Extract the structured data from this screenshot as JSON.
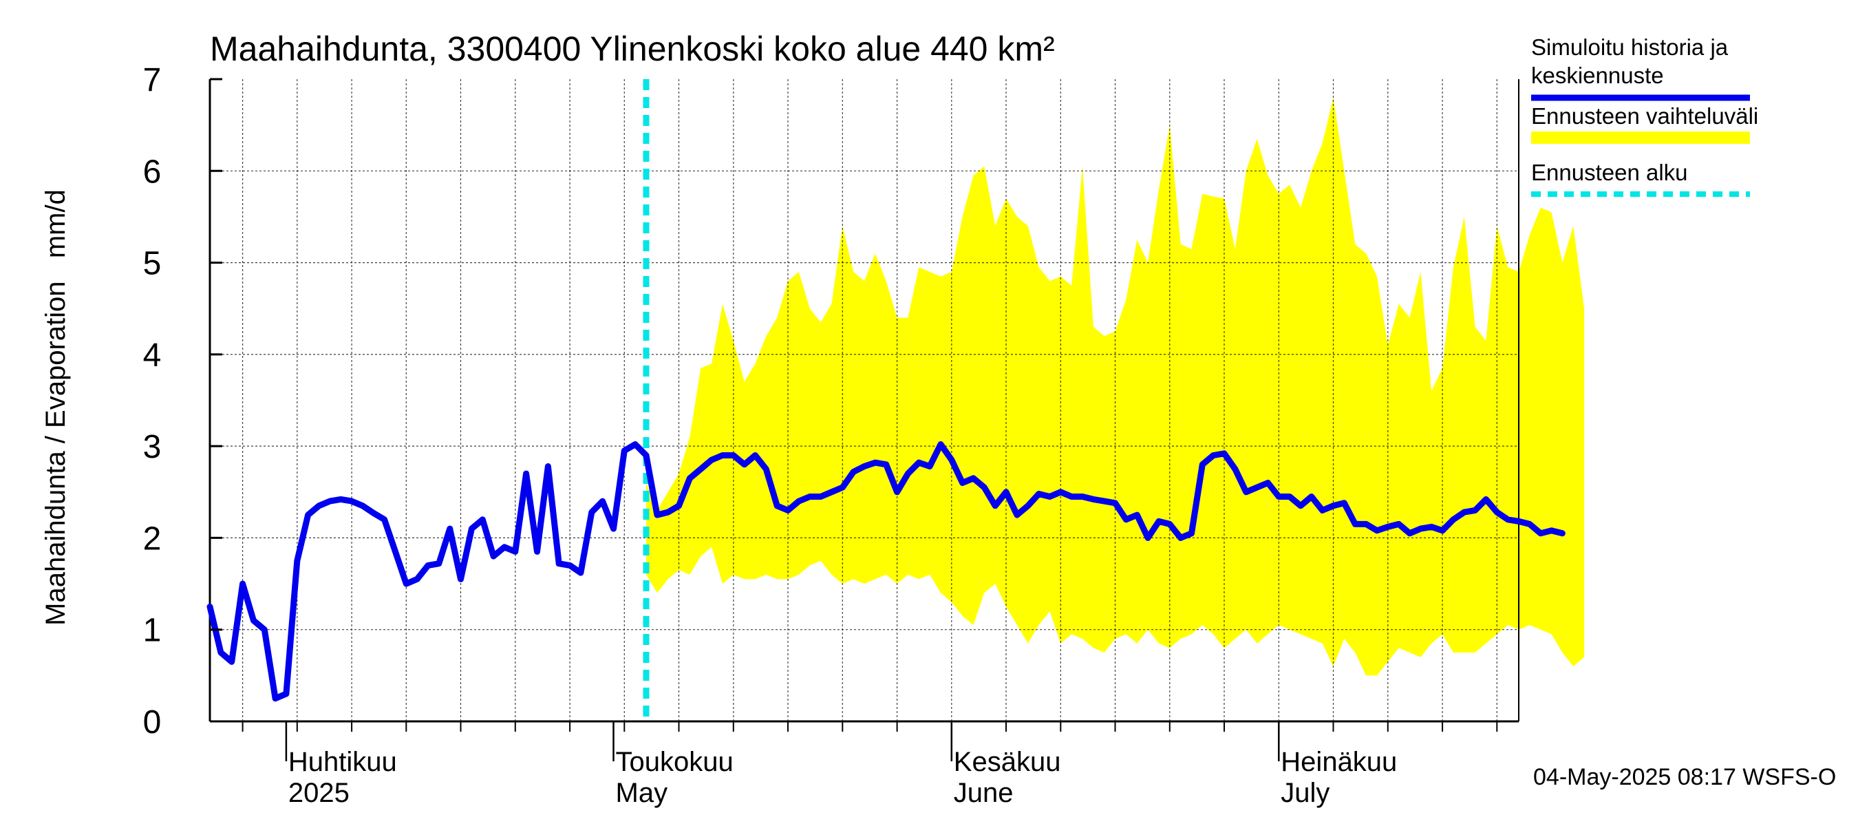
{
  "chart_data": {
    "type": "line",
    "title": "Maahaihdunta, 3300400 Ylinenkoski koko alue 440 km²",
    "ylabel": "Maahaihdunta / Evaporation   mm/d",
    "ylim": [
      0,
      7
    ],
    "yticks": [
      0,
      1,
      2,
      3,
      4,
      5,
      6,
      7
    ],
    "xlim": [
      "2025-03-25",
      "2025-07-23"
    ],
    "forecast_start": "2025-05-04",
    "months": [
      {
        "fi": "Huhtikuu",
        "en": "2025",
        "date": "2025-04-01"
      },
      {
        "fi": "Toukokuu",
        "en": "May",
        "date": "2025-05-01"
      },
      {
        "fi": "Kesäkuu",
        "en": "June",
        "date": "2025-06-01"
      },
      {
        "fi": "Heinäkuu",
        "en": "July",
        "date": "2025-07-01"
      }
    ],
    "legend": [
      {
        "label_line1": "Simuloitu historia ja",
        "label_line2": "keskiennuste",
        "color": "#0000ee",
        "style": "solid"
      },
      {
        "label_line1": "Ennusteen vaihteluväli",
        "label_line2": "",
        "color": "#ffff00",
        "style": "band"
      },
      {
        "label_line1": "Ennusteen alku",
        "label_line2": "",
        "color": "#00e5e5",
        "style": "dashed"
      }
    ],
    "colors": {
      "history": "#0000ee",
      "band": "#ffff00",
      "forecast_start": "#00e5e5",
      "grid": "#000000"
    },
    "series": [
      {
        "name": "Simuloitu historia ja keskiennuste",
        "start_date": "2025-03-25",
        "values": [
          1.25,
          0.75,
          0.65,
          1.5,
          1.1,
          1.0,
          0.25,
          0.3,
          1.75,
          2.25,
          2.35,
          2.4,
          2.42,
          2.4,
          2.35,
          2.27,
          2.2,
          1.85,
          1.5,
          1.55,
          1.7,
          1.72,
          2.1,
          1.55,
          2.1,
          2.2,
          1.8,
          1.9,
          1.85,
          2.7,
          1.85,
          2.78,
          1.72,
          1.7,
          1.62,
          2.28,
          2.4,
          2.1,
          2.95,
          3.02,
          2.9,
          2.25,
          2.28,
          2.35,
          2.65,
          2.75,
          2.85,
          2.9,
          2.9,
          2.8,
          2.9,
          2.75,
          2.35,
          2.3,
          2.4,
          2.45,
          2.45,
          2.5,
          2.55,
          2.72,
          2.78,
          2.82,
          2.8,
          2.5,
          2.7,
          2.82,
          2.78,
          3.02,
          2.85,
          2.6,
          2.65,
          2.55,
          2.35,
          2.5,
          2.25,
          2.35,
          2.48,
          2.45,
          2.5,
          2.45,
          2.45,
          2.42,
          2.4,
          2.38,
          2.2,
          2.25,
          2.0,
          2.18,
          2.15,
          2.0,
          2.05,
          2.8,
          2.9,
          2.92,
          2.75,
          2.5,
          2.55,
          2.6,
          2.45,
          2.45,
          2.35,
          2.45,
          2.3,
          2.35,
          2.38,
          2.15,
          2.15,
          2.08,
          2.12,
          2.15,
          2.05,
          2.1,
          2.12,
          2.08,
          2.2,
          2.28,
          2.3,
          2.42,
          2.28,
          2.2,
          2.18,
          2.15,
          2.05,
          2.08,
          2.05
        ]
      }
    ],
    "band": {
      "name": "Ennusteen vaihteluväli",
      "start_date": "2025-05-04",
      "upper": [
        2.6,
        2.3,
        2.5,
        2.7,
        3.1,
        3.85,
        3.9,
        4.55,
        4.15,
        3.7,
        3.9,
        4.2,
        4.4,
        4.8,
        4.9,
        4.5,
        4.35,
        4.55,
        5.4,
        4.9,
        4.8,
        5.1,
        4.8,
        4.4,
        4.4,
        4.95,
        4.9,
        4.85,
        4.9,
        5.5,
        5.95,
        6.05,
        5.4,
        5.7,
        5.5,
        5.4,
        4.95,
        4.8,
        4.85,
        4.75,
        6.05,
        4.3,
        4.2,
        4.25,
        4.6,
        5.25,
        5.0,
        5.8,
        6.5,
        5.2,
        5.15,
        5.75,
        5.72,
        5.7,
        5.15,
        6.0,
        6.35,
        5.95,
        5.75,
        5.85,
        5.6,
        6.0,
        6.3,
        6.8,
        6.0,
        5.2,
        5.1,
        4.85,
        4.1,
        4.55,
        4.4,
        4.9,
        3.6,
        3.85,
        4.95,
        5.5,
        4.3,
        4.15,
        5.4,
        4.95,
        4.9,
        5.3,
        5.6,
        5.55,
        5.0,
        5.4,
        4.5
      ],
      "lower": [
        1.6,
        1.4,
        1.55,
        1.65,
        1.6,
        1.8,
        1.9,
        1.5,
        1.6,
        1.55,
        1.55,
        1.6,
        1.55,
        1.55,
        1.6,
        1.7,
        1.75,
        1.6,
        1.5,
        1.55,
        1.5,
        1.55,
        1.6,
        1.5,
        1.6,
        1.55,
        1.6,
        1.4,
        1.3,
        1.15,
        1.05,
        1.4,
        1.5,
        1.25,
        1.05,
        0.85,
        1.05,
        1.2,
        0.85,
        0.95,
        0.9,
        0.8,
        0.75,
        0.9,
        0.95,
        0.85,
        1.0,
        0.85,
        0.8,
        0.9,
        0.95,
        1.05,
        0.95,
        0.8,
        0.9,
        1.0,
        0.85,
        0.95,
        1.05,
        1.0,
        0.95,
        0.9,
        0.85,
        0.6,
        0.9,
        0.75,
        0.5,
        0.5,
        0.65,
        0.8,
        0.75,
        0.7,
        0.85,
        0.95,
        0.75,
        0.75,
        0.75,
        0.85,
        0.95,
        1.05,
        1.0,
        1.05,
        1.0,
        0.95,
        0.75,
        0.6,
        0.7
      ]
    }
  },
  "footer": {
    "timestamp": "04-May-2025 08:17 WSFS-O"
  }
}
